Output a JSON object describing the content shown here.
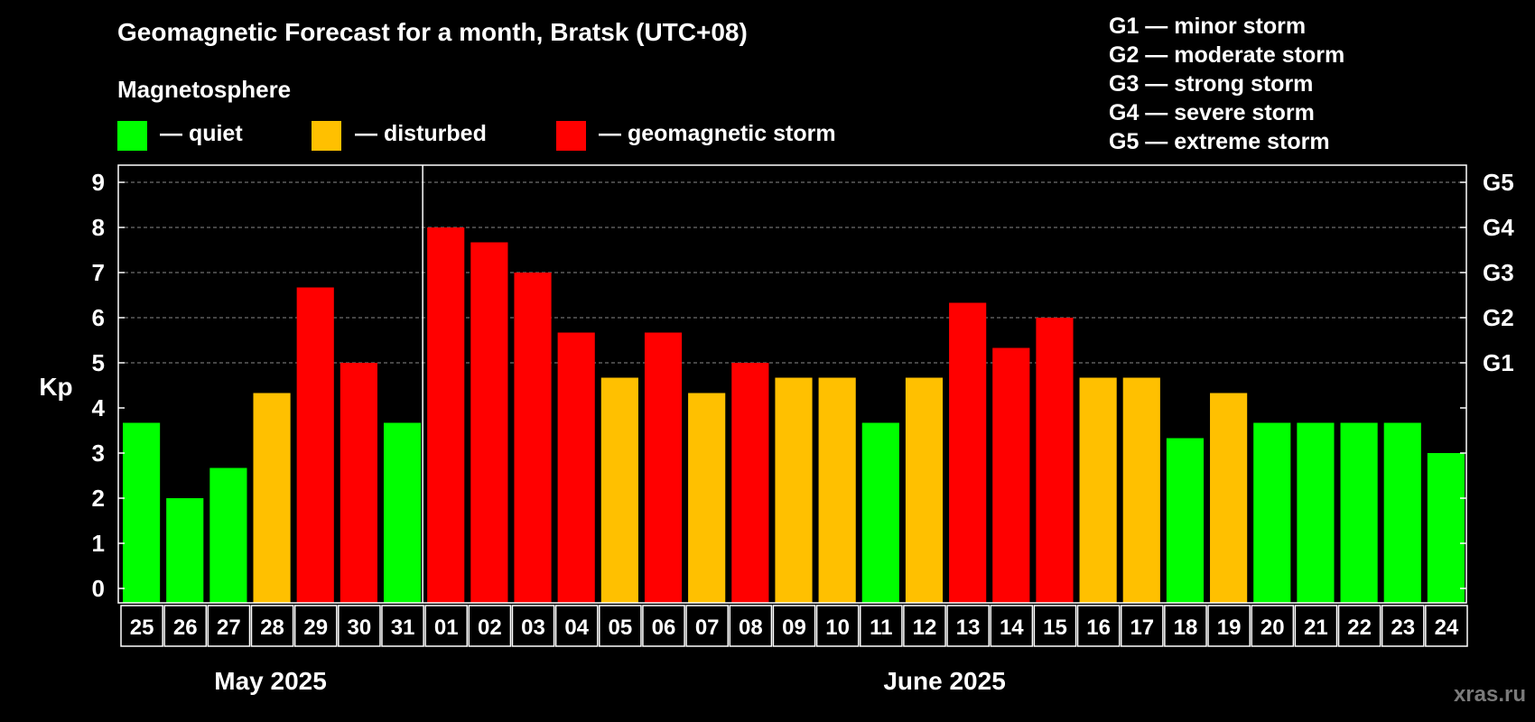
{
  "title": "Geomagnetic Forecast for a month, Bratsk (UTC+08)",
  "legend": {
    "heading": "Magnetosphere",
    "items": [
      {
        "label": "— quiet",
        "color": "#00ff00"
      },
      {
        "label": "— disturbed",
        "color": "#ffc000"
      },
      {
        "label": "— geomagnetic storm",
        "color": "#ff0000"
      }
    ]
  },
  "storm_levels": [
    {
      "label": "G1 — minor storm"
    },
    {
      "label": "G2 — moderate storm"
    },
    {
      "label": "G3 — strong storm"
    },
    {
      "label": "G4 — severe storm"
    },
    {
      "label": "G5 — extreme storm"
    }
  ],
  "watermark": "xras.ru",
  "chart_data": {
    "type": "bar",
    "ylabel": "Kp",
    "ylim": [
      0,
      9
    ],
    "yticks": [
      "0",
      "1",
      "2",
      "3",
      "4",
      "5",
      "6",
      "7",
      "8",
      "9"
    ],
    "right_axis_labels": [
      {
        "value": 5,
        "label": "G1"
      },
      {
        "value": 6,
        "label": "G2"
      },
      {
        "value": 7,
        "label": "G3"
      },
      {
        "value": 8,
        "label": "G4"
      },
      {
        "value": 9,
        "label": "G5"
      }
    ],
    "grid": "horizontal dashed at 5-9",
    "categories": [
      "25",
      "26",
      "27",
      "28",
      "29",
      "30",
      "31",
      "01",
      "02",
      "03",
      "04",
      "05",
      "06",
      "07",
      "08",
      "09",
      "10",
      "11",
      "12",
      "13",
      "14",
      "15",
      "16",
      "17",
      "18",
      "19",
      "20",
      "21",
      "22",
      "23",
      "24"
    ],
    "values": [
      3.67,
      2.0,
      2.67,
      4.33,
      6.67,
      5.0,
      3.67,
      8.0,
      7.67,
      7.0,
      5.67,
      4.67,
      5.67,
      4.33,
      5.0,
      4.67,
      4.67,
      3.67,
      4.67,
      6.33,
      5.33,
      6.0,
      4.67,
      4.67,
      3.33,
      4.33,
      3.67,
      3.67,
      3.67,
      3.67,
      3.0
    ],
    "colors": {
      "quiet": "#00ff00",
      "disturbed": "#ffc000",
      "storm": "#ff0000"
    },
    "months": [
      {
        "label": "May 2025",
        "start": 0,
        "end": 6
      },
      {
        "label": "June 2025",
        "start": 7,
        "end": 30
      }
    ]
  }
}
